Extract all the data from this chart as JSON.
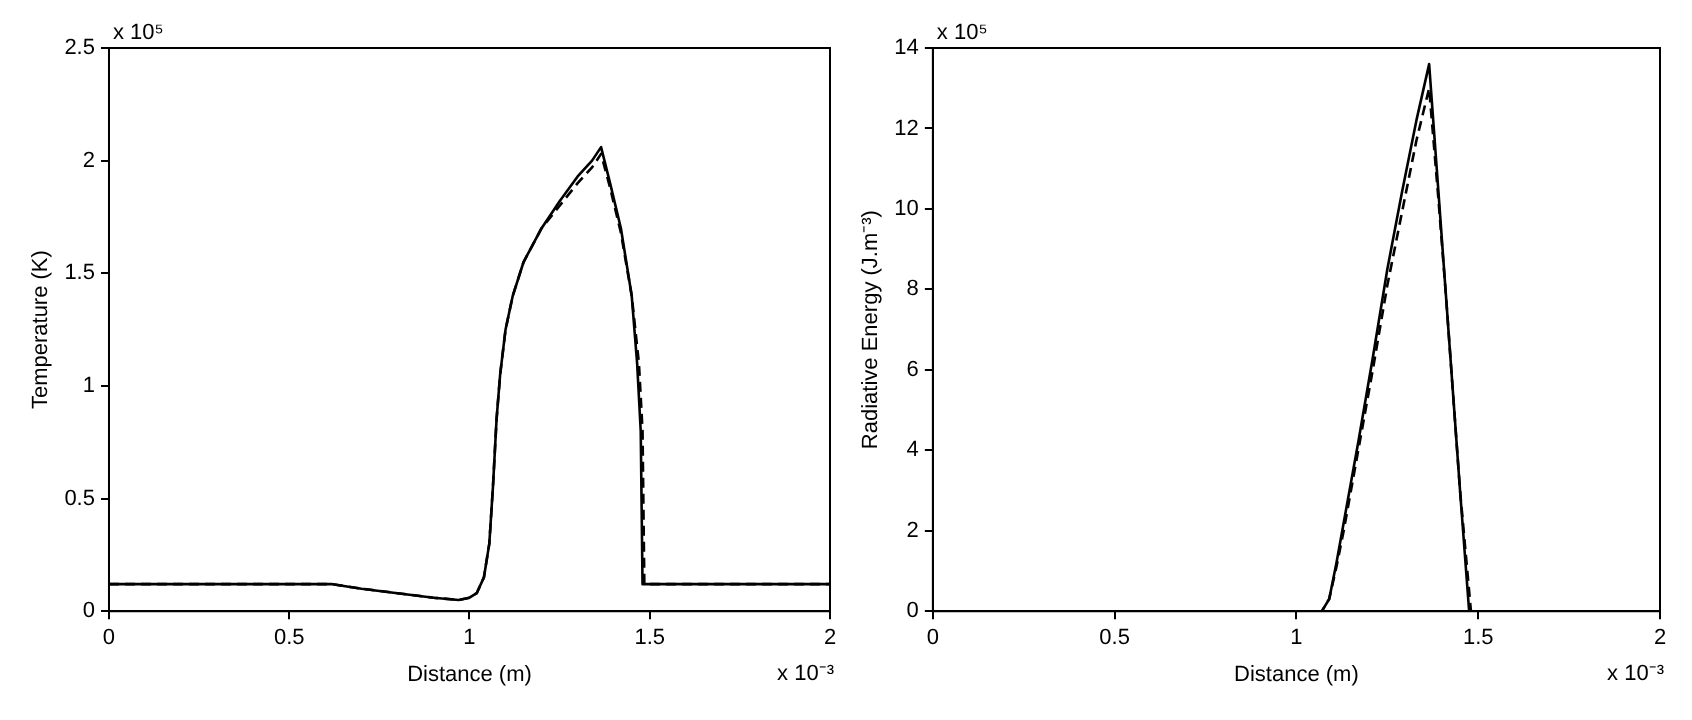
{
  "chart_data": [
    {
      "type": "line",
      "xlabel": "Distance (m)",
      "ylabel": "Temperature (K)",
      "xlim": [
        0,
        2
      ],
      "xticks": [
        0,
        0.5,
        1,
        1.5,
        2
      ],
      "ylim": [
        0,
        2.5
      ],
      "yticks": [
        0,
        0.5,
        1,
        1.5,
        2,
        2.5
      ],
      "grid": false,
      "legend": false,
      "marker": "none",
      "annotations": [
        "x 10⁵",
        "x 10⁻³"
      ],
      "series": [
        {
          "color": "#000000",
          "line_style": "solid",
          "x": [
            0,
            0.3,
            0.62,
            0.7,
            0.8,
            0.9,
            0.97,
            1.0,
            1.02,
            1.04,
            1.055,
            1.065,
            1.075,
            1.085,
            1.1,
            1.12,
            1.15,
            1.2,
            1.25,
            1.3,
            1.34,
            1.365,
            1.39,
            1.42,
            1.45,
            1.465,
            1.475,
            1.48,
            1.6,
            2
          ],
          "values": [
            0.12,
            0.12,
            0.12,
            0.1,
            0.08,
            0.06,
            0.05,
            0.06,
            0.08,
            0.15,
            0.3,
            0.55,
            0.85,
            1.05,
            1.25,
            1.4,
            1.55,
            1.7,
            1.82,
            1.93,
            2.0,
            2.06,
            1.9,
            1.7,
            1.4,
            1.1,
            0.8,
            0.12,
            0.12,
            0.12
          ]
        },
        {
          "color": "#000000",
          "line_style": "dashed",
          "x": [
            0,
            0.3,
            0.62,
            0.7,
            0.8,
            0.9,
            0.97,
            1.0,
            1.02,
            1.04,
            1.055,
            1.065,
            1.075,
            1.085,
            1.1,
            1.12,
            1.15,
            1.2,
            1.25,
            1.3,
            1.34,
            1.365,
            1.39,
            1.42,
            1.45,
            1.47,
            1.48,
            1.485,
            1.6,
            2
          ],
          "values": [
            0.12,
            0.12,
            0.12,
            0.1,
            0.08,
            0.06,
            0.05,
            0.06,
            0.08,
            0.15,
            0.3,
            0.55,
            0.85,
            1.05,
            1.25,
            1.4,
            1.55,
            1.7,
            1.8,
            1.9,
            1.97,
            2.03,
            1.88,
            1.68,
            1.4,
            1.1,
            0.8,
            0.12,
            0.12,
            0.12
          ]
        }
      ]
    },
    {
      "type": "line",
      "xlabel": "Distance (m)",
      "ylabel": "Radiative Energy (J.m⁻³)",
      "xlim": [
        0,
        2
      ],
      "xticks": [
        0,
        0.5,
        1,
        1.5,
        2
      ],
      "ylim": [
        0,
        14
      ],
      "yticks": [
        0,
        2,
        4,
        6,
        8,
        10,
        12,
        14
      ],
      "grid": false,
      "legend": false,
      "marker": "none",
      "annotations": [
        "x 10⁵",
        "x 10⁻³"
      ],
      "series": [
        {
          "color": "#000000",
          "line_style": "solid",
          "x": [
            0,
            0.5,
            1.07,
            1.09,
            1.11,
            1.13,
            1.17,
            1.21,
            1.25,
            1.29,
            1.33,
            1.365,
            1.39,
            1.41,
            1.43,
            1.45,
            1.475,
            1.6,
            2
          ],
          "values": [
            0,
            0,
            0,
            0.3,
            1.2,
            2.2,
            4.2,
            6.3,
            8.5,
            10.4,
            12.2,
            13.6,
            10.5,
            8,
            5.5,
            3,
            0,
            0,
            0
          ]
        },
        {
          "color": "#000000",
          "line_style": "dashed",
          "x": [
            0,
            0.5,
            1.07,
            1.09,
            1.11,
            1.13,
            1.17,
            1.21,
            1.25,
            1.29,
            1.33,
            1.365,
            1.39,
            1.41,
            1.43,
            1.45,
            1.48,
            1.6,
            2
          ],
          "values": [
            0,
            0,
            0,
            0.3,
            1.1,
            2.0,
            4.0,
            6.0,
            8.1,
            9.9,
            11.7,
            13.0,
            10.3,
            8,
            5.5,
            3,
            0,
            0,
            0
          ]
        }
      ]
    }
  ]
}
